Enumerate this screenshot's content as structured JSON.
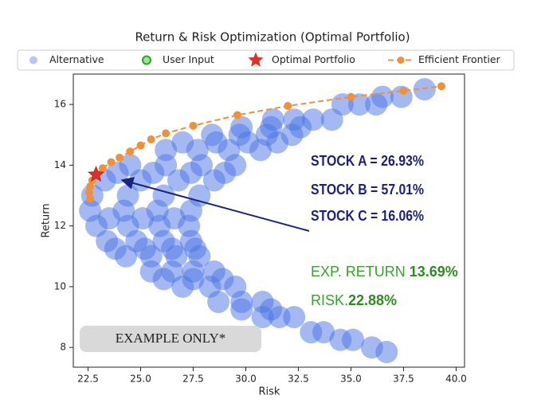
{
  "chart_data": {
    "type": "scatter",
    "title": "Return & Risk Optimization (Optimal Portfolio)",
    "x_label": "Risk",
    "y_label": "Return",
    "xlim": [
      21.8,
      40.4
    ],
    "ylim": [
      7.35,
      17.0
    ],
    "xticks": [
      22.5,
      {
        "value": 25,
        "label": "25.0"
      },
      27.5,
      {
        "value": 30,
        "label": "30.0"
      },
      32.5,
      {
        "value": 35,
        "label": "35.0"
      },
      37.5,
      {
        "value": 40,
        "label": "40.0"
      }
    ],
    "yticks": [
      8,
      10,
      12,
      14,
      16
    ],
    "grid": false,
    "legend": "top",
    "series": [
      {
        "name": "Alternative",
        "color": "#4a74e6",
        "marker": "circle",
        "x": [
          38.5,
          36.5,
          37.4,
          34.6,
          35.4,
          36.2,
          31.3,
          32.3,
          33.2,
          34.1,
          29.8,
          31.2,
          32.6,
          28.4,
          29.7,
          31.0,
          32.2,
          27.0,
          28.6,
          30.1,
          31.5,
          26.2,
          27.7,
          29.2,
          30.7,
          24.5,
          26.2,
          27.9,
          29.5,
          23.9,
          25.6,
          27.4,
          29.0,
          23.3,
          25.0,
          26.8,
          28.5,
          22.7,
          24.4,
          26.1,
          27.8,
          22.6,
          24.2,
          25.8,
          27.4,
          23.5,
          25.1,
          26.6,
          22.9,
          24.4,
          25.9,
          27.3,
          23.4,
          24.8,
          26.1,
          27.4,
          23.8,
          25.2,
          26.5,
          27.6,
          24.3,
          25.5,
          26.7,
          27.8,
          25.5,
          26.5,
          27.5,
          28.5,
          26.1,
          27.5,
          28.9,
          27.0,
          28.3,
          29.5,
          28.7,
          29.8,
          30.8,
          29.8,
          31.2,
          30.8,
          31.6,
          32.3,
          33.1,
          33.7,
          34.5,
          35.1,
          36.0,
          36.7
        ],
        "values": [
          16.5,
          16.25,
          16.25,
          16,
          16,
          16,
          15.5,
          15.5,
          15.5,
          15.5,
          15.25,
          15.25,
          15.25,
          15,
          15,
          15,
          15,
          14.75,
          14.75,
          14.75,
          14.75,
          14.5,
          14.5,
          14.5,
          14.5,
          14,
          14,
          14,
          14,
          13.75,
          13.75,
          13.75,
          13.75,
          13.5,
          13.5,
          13.5,
          13.5,
          13,
          13,
          13,
          13,
          12.5,
          12.5,
          12.5,
          12.5,
          12.25,
          12.25,
          12.25,
          12,
          12,
          12,
          12,
          11.5,
          11.5,
          11.5,
          11.5,
          11.25,
          11.25,
          11.25,
          11.25,
          11,
          11,
          11,
          11,
          10.5,
          10.5,
          10.5,
          10.5,
          10.25,
          10.25,
          10.25,
          10,
          10,
          10,
          9.5,
          9.5,
          9.5,
          9.25,
          9.25,
          9,
          9,
          9,
          8.5,
          8.5,
          8.25,
          8.25,
          8,
          7.85
        ]
      },
      {
        "name": "User Input",
        "color": "#2ca02c",
        "marker": "ring",
        "x": [],
        "values": []
      },
      {
        "name": "Optimal Portfolio",
        "color": "#e0302a",
        "marker": "star",
        "x": [
          22.88
        ],
        "values": [
          13.69
        ]
      },
      {
        "name": "Efficient Frontier",
        "color": "#f0903a",
        "marker": "dashed-line",
        "x": [
          22.6,
          22.55,
          22.6,
          22.7,
          22.88,
          23.2,
          23.6,
          24.0,
          24.5,
          25.0,
          25.5,
          26.2,
          27.5,
          29.6,
          32.0,
          35.0,
          37.5,
          39.3
        ],
        "values": [
          12.9,
          13.1,
          13.3,
          13.5,
          13.69,
          13.9,
          14.1,
          14.25,
          14.45,
          14.65,
          14.85,
          15.05,
          15.3,
          15.65,
          15.95,
          16.25,
          16.45,
          16.6
        ]
      }
    ],
    "annotations": {
      "stocks": [
        "STOCK A = 26.93%",
        "STOCK B = 57.01%",
        "STOCK C = 16.06%"
      ],
      "exp_return_label": "EXP. RETURN",
      "exp_return_value": "13.69%",
      "risk_label": "RISK.",
      "risk_value": "22.88%",
      "stamp": "EXAMPLE ONLY*"
    }
  }
}
